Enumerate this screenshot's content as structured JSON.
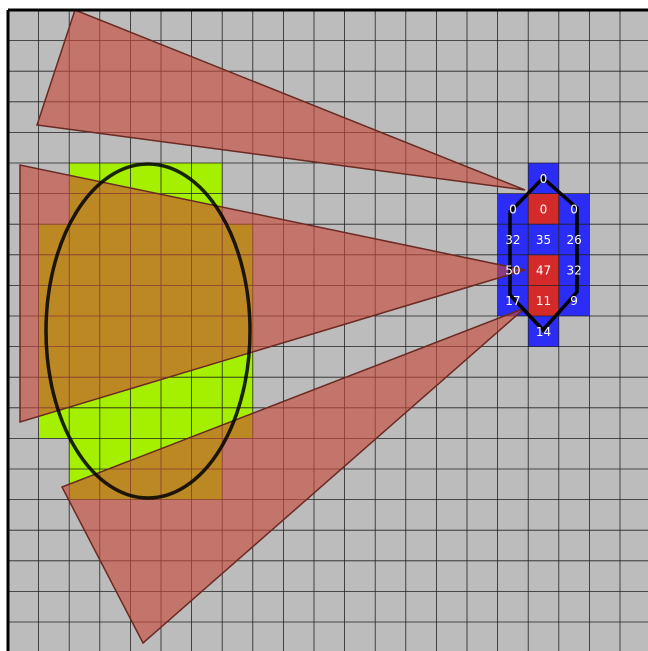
{
  "grid_labels": [
    [
      "0"
    ],
    [
      "0",
      "0",
      "0"
    ],
    [
      "32",
      "35",
      "26"
    ],
    [
      "50",
      "47",
      "32"
    ],
    [
      "17",
      "11",
      "9"
    ],
    [
      "14"
    ]
  ]
}
